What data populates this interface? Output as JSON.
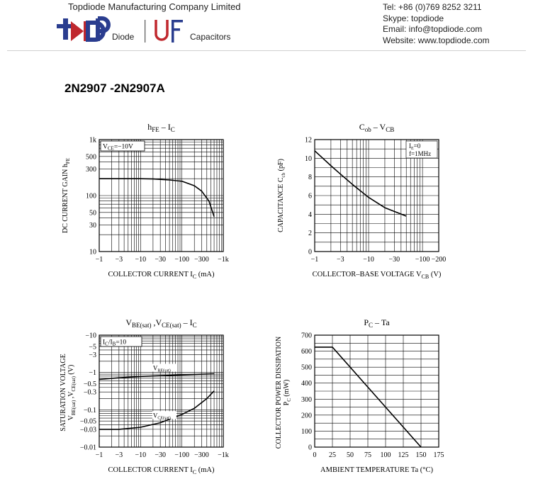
{
  "header": {
    "company": "Topdiode Manufacturing Company Limited",
    "diode_label": "Diode",
    "capacitors_label": "Capacitors",
    "contact": [
      "Tel: +86 (0)769 8252 3211",
      "Skype: topdiode",
      "Email: info@topdiode.com",
      "Website: www.topdiode.com"
    ],
    "brand_colors": {
      "navy": "#2a3d8f",
      "red": "#c0282e"
    }
  },
  "part_number": "2N2907 -2N2907A",
  "chart_data": [
    {
      "id": "hfe",
      "type": "line",
      "x_scale": "log",
      "y_scale": "log",
      "title_parts": [
        "h",
        "FE",
        "  –  I",
        "C"
      ],
      "xlabel_parts": [
        "COLLECTOR CURRENT I",
        "C",
        "  (mA)"
      ],
      "ylabel_parts": [
        "DC  CURRENT  GAIN  h",
        "FE"
      ],
      "annotation_parts": [
        "V",
        "CE",
        "=−10V"
      ],
      "xlim": [
        1,
        1000
      ],
      "ylim": [
        10,
        1000
      ],
      "x_ticks": [
        1,
        3,
        10,
        30,
        100,
        300,
        1000
      ],
      "x_tick_labels": [
        "−1",
        "−3",
        "−10",
        "−30",
        "−100",
        "−300",
        "−1k"
      ],
      "y_ticks": [
        10,
        30,
        50,
        100,
        300,
        500,
        1000
      ],
      "y_tick_labels": [
        "10",
        "30",
        "50",
        "100",
        "300",
        "500",
        "1k"
      ],
      "grid": true,
      "series": [
        {
          "x": [
            1,
            3,
            10,
            20,
            50,
            100,
            200,
            300,
            450,
            600
          ],
          "y": [
            200,
            200,
            200,
            198,
            190,
            180,
            150,
            120,
            80,
            42
          ]
        }
      ]
    },
    {
      "id": "cob",
      "type": "line",
      "x_scale": "log",
      "y_scale": "linear",
      "title_parts": [
        "C",
        "ob",
        "  –  V",
        "CB"
      ],
      "xlabel_parts": [
        "COLLECTOR–BASE VOLTAGE V",
        "CB",
        "  (V)"
      ],
      "ylabel_parts": [
        "CAPACITANCE  C",
        "cb",
        "  (pF)"
      ],
      "annotation_lines": [
        "I",
        "E",
        "=0",
        "f=1MHz"
      ],
      "xlim": [
        1,
        200
      ],
      "ylim": [
        0,
        12
      ],
      "x_ticks": [
        1,
        3,
        10,
        30,
        100,
        200
      ],
      "x_tick_labels": [
        "−1",
        "−3",
        "−10",
        "−30",
        "−100",
        "−200"
      ],
      "y_ticks": [
        0,
        2,
        4,
        6,
        8,
        10,
        12
      ],
      "y_tick_labels": [
        "0",
        "2",
        "4",
        "6",
        "8",
        "10",
        "12"
      ],
      "grid": true,
      "series": [
        {
          "x": [
            1,
            2,
            3,
            5,
            10,
            20,
            30,
            50
          ],
          "y": [
            10.8,
            9.2,
            8.3,
            7.2,
            5.8,
            4.7,
            4.3,
            3.8
          ]
        }
      ]
    },
    {
      "id": "vsat",
      "type": "line",
      "x_scale": "log",
      "y_scale": "log",
      "title_parts": [
        "V",
        "BE(sat)",
        " ,V",
        "CE(sat)",
        "  –  I",
        "C"
      ],
      "xlabel_parts": [
        "COLLECTOR CURRENT I",
        "C",
        "  (mA)"
      ],
      "ylabel_line1": "SATURATION  VOLTAGE",
      "ylabel_line2_parts": [
        "V",
        "BE(sat)",
        " ,V",
        "CE(sat)",
        "  (V)"
      ],
      "annotation_parts": [
        "I",
        "C",
        "/I",
        "B",
        "=10"
      ],
      "xlim": [
        1,
        1000
      ],
      "ylim": [
        0.01,
        10
      ],
      "x_ticks": [
        1,
        3,
        10,
        30,
        100,
        300,
        1000
      ],
      "x_tick_labels": [
        "−1",
        "−3",
        "−10",
        "−30",
        "−100",
        "−300",
        "−1k"
      ],
      "y_ticks": [
        0.01,
        0.03,
        0.05,
        0.1,
        0.3,
        0.5,
        1,
        3,
        5,
        10
      ],
      "y_tick_labels": [
        "−0.01",
        "−0.03",
        "−0.05",
        "−0.1",
        "−0.3",
        "−0.5",
        "−1",
        "−3",
        "−5",
        "−10"
      ],
      "grid": true,
      "series": [
        {
          "label_parts": [
            "V",
            "BE(sat)"
          ],
          "label_at": [
            20,
            1.15
          ],
          "x": [
            1,
            3,
            10,
            30,
            100,
            300,
            600
          ],
          "y": [
            0.65,
            0.72,
            0.78,
            0.82,
            0.86,
            0.9,
            0.92
          ]
        },
        {
          "label_parts": [
            "V",
            "CE(sat)"
          ],
          "label_at": [
            20,
            0.062
          ],
          "x": [
            1,
            3,
            10,
            30,
            100,
            200,
            400,
            600
          ],
          "y": [
            0.03,
            0.03,
            0.034,
            0.045,
            0.075,
            0.11,
            0.2,
            0.32
          ]
        }
      ]
    },
    {
      "id": "pc",
      "type": "line",
      "x_scale": "linear",
      "y_scale": "linear",
      "title_parts": [
        "P",
        "C",
        "  –  Ta"
      ],
      "xlabel_parts": [
        "AMBIENT TEMPERATURE Ta  (°C)"
      ],
      "ylabel_line1": "COLLECTOR  POWER  DISSIPATION",
      "ylabel_line2_parts": [
        "P",
        "C",
        "  (mW)"
      ],
      "xlim": [
        0,
        175
      ],
      "ylim": [
        0,
        700
      ],
      "x_ticks": [
        0,
        25,
        50,
        75,
        100,
        125,
        150,
        175
      ],
      "x_tick_labels": [
        "0",
        "25",
        "50",
        "75",
        "100",
        "125",
        "150",
        "175"
      ],
      "y_ticks": [
        0,
        100,
        200,
        300,
        400,
        500,
        600,
        700
      ],
      "y_tick_labels": [
        "0",
        "100",
        "200",
        "300",
        "400",
        "500",
        "600",
        "700"
      ],
      "grid": true,
      "series": [
        {
          "x": [
            0,
            25,
            150
          ],
          "y": [
            625,
            625,
            0
          ]
        }
      ]
    }
  ]
}
